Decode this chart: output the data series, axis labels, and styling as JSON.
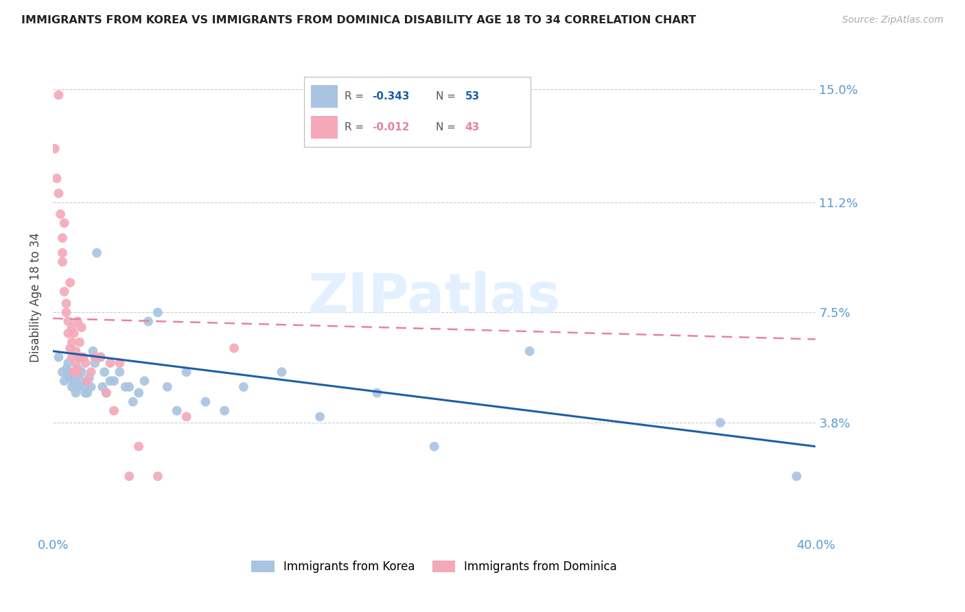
{
  "title": "IMMIGRANTS FROM KOREA VS IMMIGRANTS FROM DOMINICA DISABILITY AGE 18 TO 34 CORRELATION CHART",
  "source": "Source: ZipAtlas.com",
  "ylabel": "Disability Age 18 to 34",
  "watermark": "ZIPatlas",
  "xlim": [
    0.0,
    0.4
  ],
  "ylim": [
    0.0,
    0.16
  ],
  "ytick_labels": [
    "15.0%",
    "11.2%",
    "7.5%",
    "3.8%"
  ],
  "ytick_values": [
    0.15,
    0.112,
    0.075,
    0.038
  ],
  "korea_R": "-0.343",
  "korea_N": "53",
  "dominica_R": "-0.012",
  "dominica_N": "43",
  "korea_color": "#a8c4e0",
  "dominica_color": "#f4a8b8",
  "korea_line_color": "#1a5fa8",
  "dominica_line_color": "#e8829a",
  "axis_color": "#5b9bd5",
  "grid_color": "#cccccc",
  "background_color": "#ffffff",
  "korea_x": [
    0.003,
    0.005,
    0.006,
    0.007,
    0.008,
    0.008,
    0.009,
    0.01,
    0.01,
    0.011,
    0.012,
    0.012,
    0.013,
    0.013,
    0.014,
    0.015,
    0.015,
    0.016,
    0.017,
    0.018,
    0.018,
    0.019,
    0.02,
    0.021,
    0.022,
    0.023,
    0.025,
    0.026,
    0.027,
    0.028,
    0.03,
    0.032,
    0.035,
    0.038,
    0.04,
    0.042,
    0.045,
    0.048,
    0.05,
    0.055,
    0.06,
    0.065,
    0.07,
    0.08,
    0.09,
    0.1,
    0.12,
    0.14,
    0.17,
    0.2,
    0.25,
    0.35,
    0.39
  ],
  "korea_y": [
    0.06,
    0.055,
    0.052,
    0.056,
    0.054,
    0.058,
    0.053,
    0.05,
    0.055,
    0.052,
    0.048,
    0.054,
    0.05,
    0.056,
    0.06,
    0.052,
    0.055,
    0.05,
    0.048,
    0.052,
    0.048,
    0.053,
    0.05,
    0.062,
    0.058,
    0.095,
    0.06,
    0.05,
    0.055,
    0.048,
    0.052,
    0.052,
    0.055,
    0.05,
    0.05,
    0.045,
    0.048,
    0.052,
    0.072,
    0.075,
    0.05,
    0.042,
    0.055,
    0.045,
    0.042,
    0.05,
    0.055,
    0.04,
    0.048,
    0.03,
    0.062,
    0.038,
    0.02
  ],
  "dominica_x": [
    0.001,
    0.002,
    0.003,
    0.003,
    0.004,
    0.005,
    0.005,
    0.005,
    0.006,
    0.006,
    0.007,
    0.007,
    0.008,
    0.008,
    0.009,
    0.009,
    0.01,
    0.01,
    0.01,
    0.011,
    0.011,
    0.012,
    0.012,
    0.013,
    0.013,
    0.014,
    0.015,
    0.015,
    0.016,
    0.017,
    0.018,
    0.02,
    0.022,
    0.025,
    0.028,
    0.03,
    0.032,
    0.035,
    0.04,
    0.045,
    0.055,
    0.07,
    0.095
  ],
  "dominica_y": [
    0.13,
    0.12,
    0.148,
    0.115,
    0.108,
    0.1,
    0.092,
    0.095,
    0.082,
    0.105,
    0.075,
    0.078,
    0.072,
    0.068,
    0.085,
    0.063,
    0.06,
    0.065,
    0.07,
    0.068,
    0.055,
    0.058,
    0.062,
    0.055,
    0.072,
    0.065,
    0.06,
    0.07,
    0.06,
    0.058,
    0.052,
    0.055,
    0.06,
    0.06,
    0.048,
    0.058,
    0.042,
    0.058,
    0.02,
    0.03,
    0.02,
    0.04,
    0.063
  ],
  "korea_trend_x": [
    0.0,
    0.4
  ],
  "korea_trend_y": [
    0.062,
    0.03
  ],
  "dominica_trend_x": [
    0.0,
    0.4
  ],
  "dominica_trend_y": [
    0.073,
    0.066
  ]
}
